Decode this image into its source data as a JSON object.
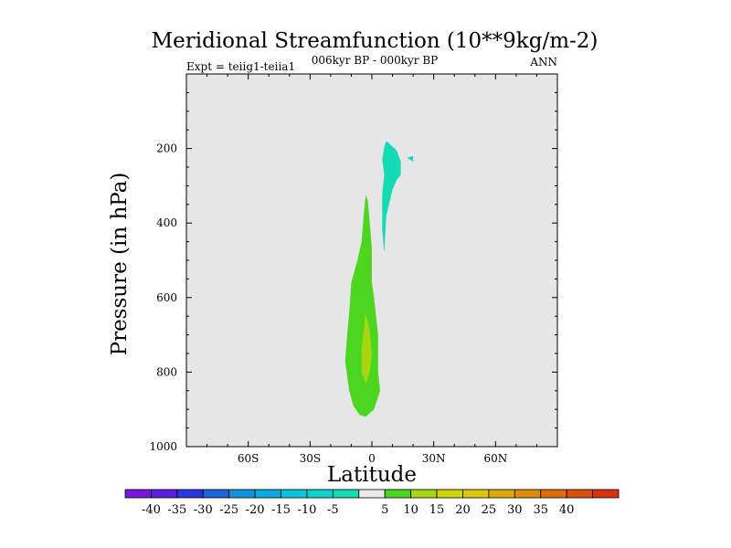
{
  "chart_data": {
    "type": "contour",
    "title": "Meridional Streamfunction (10**9kg/m-2)",
    "subtitle": "006kyr BP - 000kyr BP",
    "left_label": "Expt = teiig1-teiia1",
    "right_label": "ANN",
    "xlabel": "Latitude",
    "ylabel": "Pressure (in hPa)",
    "xlim": [
      -90,
      90
    ],
    "ylim": [
      1000,
      0
    ],
    "xticks": [
      {
        "value": -60,
        "label": "60S"
      },
      {
        "value": -30,
        "label": "30S"
      },
      {
        "value": 0,
        "label": "0"
      },
      {
        "value": 30,
        "label": "30N"
      },
      {
        "value": 60,
        "label": "60N"
      }
    ],
    "yticks": [
      {
        "value": 200,
        "label": "200"
      },
      {
        "value": 400,
        "label": "400"
      },
      {
        "value": 600,
        "label": "600"
      },
      {
        "value": 800,
        "label": "800"
      },
      {
        "value": 1000,
        "label": "1000"
      }
    ],
    "background_color": "#e6e6e6",
    "regions": [
      {
        "range": "-10 to -5",
        "color": "#15dbb5",
        "points": [
          [
            7,
            180
          ],
          [
            12,
            205
          ],
          [
            14,
            235
          ],
          [
            14,
            270
          ],
          [
            12,
            285
          ],
          [
            10,
            310
          ],
          [
            7,
            380
          ],
          [
            6,
            480
          ],
          [
            5,
            420
          ],
          [
            5,
            320
          ],
          [
            6,
            270
          ],
          [
            5,
            230
          ],
          [
            6,
            195
          ]
        ]
      },
      {
        "range": "-10 to -5",
        "color": "#15dbb5",
        "points": [
          [
            17,
            225
          ],
          [
            20,
            220
          ],
          [
            20,
            235
          ]
        ]
      },
      {
        "range": "5 to 10",
        "color": "#4cd61f",
        "points": [
          [
            -3,
            325
          ],
          [
            -2,
            340
          ],
          [
            -1,
            400
          ],
          [
            0,
            470
          ],
          [
            0,
            560
          ],
          [
            1,
            600
          ],
          [
            3,
            700
          ],
          [
            3,
            800
          ],
          [
            4,
            850
          ],
          [
            1,
            900
          ],
          [
            -3,
            920
          ],
          [
            -6,
            915
          ],
          [
            -9,
            890
          ],
          [
            -11,
            850
          ],
          [
            -12,
            810
          ],
          [
            -13,
            770
          ],
          [
            -12,
            700
          ],
          [
            -11,
            640
          ],
          [
            -10,
            560
          ],
          [
            -7,
            500
          ],
          [
            -5,
            450
          ],
          [
            -4,
            380
          ]
        ]
      },
      {
        "range": "10 to 15",
        "color": "#a6d611",
        "points": [
          [
            -3,
            640
          ],
          [
            -1,
            690
          ],
          [
            0,
            750
          ],
          [
            -1,
            800
          ],
          [
            -3,
            830
          ],
          [
            -5,
            800
          ],
          [
            -5,
            740
          ],
          [
            -4,
            690
          ]
        ]
      }
    ],
    "colorbar": {
      "colors": [
        "#7a16e0",
        "#5a1fdd",
        "#2a37e0",
        "#1a64dd",
        "#1190dd",
        "#0aaade",
        "#0ac3dc",
        "#0fd3c9",
        "#15dbb5",
        "#eaeaea",
        "#4cd61f",
        "#a6d611",
        "#cfd40c",
        "#dcc60b",
        "#dcaa0b",
        "#dd8b0b",
        "#dc6c0d",
        "#dc4e0e",
        "#db3010"
      ],
      "labels": [
        "-40",
        "-35",
        "-30",
        "-25",
        "-20",
        "-15",
        "-10",
        "-5",
        "5",
        "10",
        "15",
        "20",
        "25",
        "30",
        "35",
        "40"
      ]
    }
  }
}
